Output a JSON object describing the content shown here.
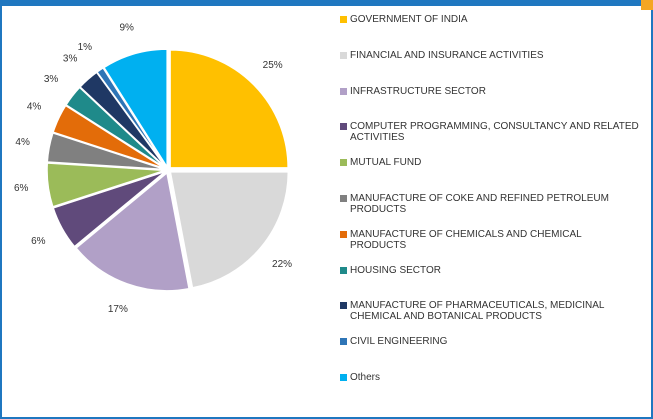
{
  "chart_data": {
    "type": "pie",
    "categories": [
      "GOVERNMENT OF INDIA",
      "FINANCIAL AND INSURANCE ACTIVITIES",
      "INFRASTRUCTURE SECTOR",
      "COMPUTER PROGRAMMING, CONSULTANCY AND RELATED ACTIVITIES",
      "MUTUAL FUND",
      "MANUFACTURE OF COKE AND REFINED PETROLEUM PRODUCTS",
      "MANUFACTURE OF CHEMICALS AND CHEMICAL PRODUCTS",
      "HOUSING SECTOR",
      "MANUFACTURE OF PHARMACEUTICALS, MEDICINAL CHEMICAL AND BOTANICAL PRODUCTS",
      "CIVIL ENGINEERING",
      "Others"
    ],
    "values": [
      25,
      22,
      17,
      6,
      6,
      4,
      4,
      3,
      3,
      1,
      9
    ],
    "value_labels": [
      "25%",
      "22%",
      "17%",
      "6%",
      "6%",
      "4%",
      "4%",
      "3%",
      "3%",
      "1%",
      "9%"
    ],
    "colors": [
      "#FFC000",
      "#D9D9D9",
      "#B1A0C7",
      "#604A7B",
      "#9BBB59",
      "#808080",
      "#E36C09",
      "#1F8A8A",
      "#1F3864",
      "#2E75B6",
      "#00B0F0"
    ],
    "legend": "right"
  }
}
